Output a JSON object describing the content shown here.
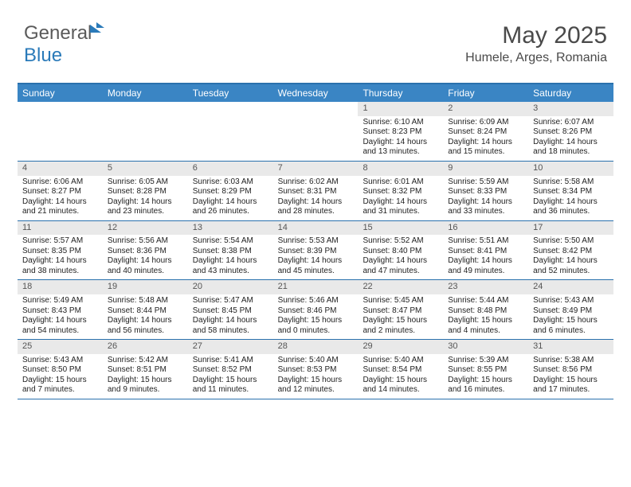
{
  "logo": {
    "part1": "General",
    "part2": "Blue"
  },
  "header": {
    "month_year": "May 2025",
    "location": "Humele, Arges, Romania"
  },
  "styling": {
    "header_bg": "#3a85c4",
    "header_border": "#2a71ad",
    "daynum_bg": "#e9e9e9",
    "page_bg": "#ffffff",
    "text_color": "#222222",
    "logo_gray": "#5a5a5a",
    "logo_blue": "#2a7ab9",
    "month_fontsize": 30,
    "location_fontsize": 16,
    "dayheader_fontsize": 12,
    "body_fontsize": 10,
    "columns": 7
  },
  "day_headers": [
    "Sunday",
    "Monday",
    "Tuesday",
    "Wednesday",
    "Thursday",
    "Friday",
    "Saturday"
  ],
  "weeks": [
    [
      {
        "n": "",
        "sr": "",
        "ss": "",
        "dl": ""
      },
      {
        "n": "",
        "sr": "",
        "ss": "",
        "dl": ""
      },
      {
        "n": "",
        "sr": "",
        "ss": "",
        "dl": ""
      },
      {
        "n": "",
        "sr": "",
        "ss": "",
        "dl": ""
      },
      {
        "n": "1",
        "sr": "Sunrise: 6:10 AM",
        "ss": "Sunset: 8:23 PM",
        "dl": "Daylight: 14 hours and 13 minutes."
      },
      {
        "n": "2",
        "sr": "Sunrise: 6:09 AM",
        "ss": "Sunset: 8:24 PM",
        "dl": "Daylight: 14 hours and 15 minutes."
      },
      {
        "n": "3",
        "sr": "Sunrise: 6:07 AM",
        "ss": "Sunset: 8:26 PM",
        "dl": "Daylight: 14 hours and 18 minutes."
      }
    ],
    [
      {
        "n": "4",
        "sr": "Sunrise: 6:06 AM",
        "ss": "Sunset: 8:27 PM",
        "dl": "Daylight: 14 hours and 21 minutes."
      },
      {
        "n": "5",
        "sr": "Sunrise: 6:05 AM",
        "ss": "Sunset: 8:28 PM",
        "dl": "Daylight: 14 hours and 23 minutes."
      },
      {
        "n": "6",
        "sr": "Sunrise: 6:03 AM",
        "ss": "Sunset: 8:29 PM",
        "dl": "Daylight: 14 hours and 26 minutes."
      },
      {
        "n": "7",
        "sr": "Sunrise: 6:02 AM",
        "ss": "Sunset: 8:31 PM",
        "dl": "Daylight: 14 hours and 28 minutes."
      },
      {
        "n": "8",
        "sr": "Sunrise: 6:01 AM",
        "ss": "Sunset: 8:32 PM",
        "dl": "Daylight: 14 hours and 31 minutes."
      },
      {
        "n": "9",
        "sr": "Sunrise: 5:59 AM",
        "ss": "Sunset: 8:33 PM",
        "dl": "Daylight: 14 hours and 33 minutes."
      },
      {
        "n": "10",
        "sr": "Sunrise: 5:58 AM",
        "ss": "Sunset: 8:34 PM",
        "dl": "Daylight: 14 hours and 36 minutes."
      }
    ],
    [
      {
        "n": "11",
        "sr": "Sunrise: 5:57 AM",
        "ss": "Sunset: 8:35 PM",
        "dl": "Daylight: 14 hours and 38 minutes."
      },
      {
        "n": "12",
        "sr": "Sunrise: 5:56 AM",
        "ss": "Sunset: 8:36 PM",
        "dl": "Daylight: 14 hours and 40 minutes."
      },
      {
        "n": "13",
        "sr": "Sunrise: 5:54 AM",
        "ss": "Sunset: 8:38 PM",
        "dl": "Daylight: 14 hours and 43 minutes."
      },
      {
        "n": "14",
        "sr": "Sunrise: 5:53 AM",
        "ss": "Sunset: 8:39 PM",
        "dl": "Daylight: 14 hours and 45 minutes."
      },
      {
        "n": "15",
        "sr": "Sunrise: 5:52 AM",
        "ss": "Sunset: 8:40 PM",
        "dl": "Daylight: 14 hours and 47 minutes."
      },
      {
        "n": "16",
        "sr": "Sunrise: 5:51 AM",
        "ss": "Sunset: 8:41 PM",
        "dl": "Daylight: 14 hours and 49 minutes."
      },
      {
        "n": "17",
        "sr": "Sunrise: 5:50 AM",
        "ss": "Sunset: 8:42 PM",
        "dl": "Daylight: 14 hours and 52 minutes."
      }
    ],
    [
      {
        "n": "18",
        "sr": "Sunrise: 5:49 AM",
        "ss": "Sunset: 8:43 PM",
        "dl": "Daylight: 14 hours and 54 minutes."
      },
      {
        "n": "19",
        "sr": "Sunrise: 5:48 AM",
        "ss": "Sunset: 8:44 PM",
        "dl": "Daylight: 14 hours and 56 minutes."
      },
      {
        "n": "20",
        "sr": "Sunrise: 5:47 AM",
        "ss": "Sunset: 8:45 PM",
        "dl": "Daylight: 14 hours and 58 minutes."
      },
      {
        "n": "21",
        "sr": "Sunrise: 5:46 AM",
        "ss": "Sunset: 8:46 PM",
        "dl": "Daylight: 15 hours and 0 minutes."
      },
      {
        "n": "22",
        "sr": "Sunrise: 5:45 AM",
        "ss": "Sunset: 8:47 PM",
        "dl": "Daylight: 15 hours and 2 minutes."
      },
      {
        "n": "23",
        "sr": "Sunrise: 5:44 AM",
        "ss": "Sunset: 8:48 PM",
        "dl": "Daylight: 15 hours and 4 minutes."
      },
      {
        "n": "24",
        "sr": "Sunrise: 5:43 AM",
        "ss": "Sunset: 8:49 PM",
        "dl": "Daylight: 15 hours and 6 minutes."
      }
    ],
    [
      {
        "n": "25",
        "sr": "Sunrise: 5:43 AM",
        "ss": "Sunset: 8:50 PM",
        "dl": "Daylight: 15 hours and 7 minutes."
      },
      {
        "n": "26",
        "sr": "Sunrise: 5:42 AM",
        "ss": "Sunset: 8:51 PM",
        "dl": "Daylight: 15 hours and 9 minutes."
      },
      {
        "n": "27",
        "sr": "Sunrise: 5:41 AM",
        "ss": "Sunset: 8:52 PM",
        "dl": "Daylight: 15 hours and 11 minutes."
      },
      {
        "n": "28",
        "sr": "Sunrise: 5:40 AM",
        "ss": "Sunset: 8:53 PM",
        "dl": "Daylight: 15 hours and 12 minutes."
      },
      {
        "n": "29",
        "sr": "Sunrise: 5:40 AM",
        "ss": "Sunset: 8:54 PM",
        "dl": "Daylight: 15 hours and 14 minutes."
      },
      {
        "n": "30",
        "sr": "Sunrise: 5:39 AM",
        "ss": "Sunset: 8:55 PM",
        "dl": "Daylight: 15 hours and 16 minutes."
      },
      {
        "n": "31",
        "sr": "Sunrise: 5:38 AM",
        "ss": "Sunset: 8:56 PM",
        "dl": "Daylight: 15 hours and 17 minutes."
      }
    ]
  ]
}
